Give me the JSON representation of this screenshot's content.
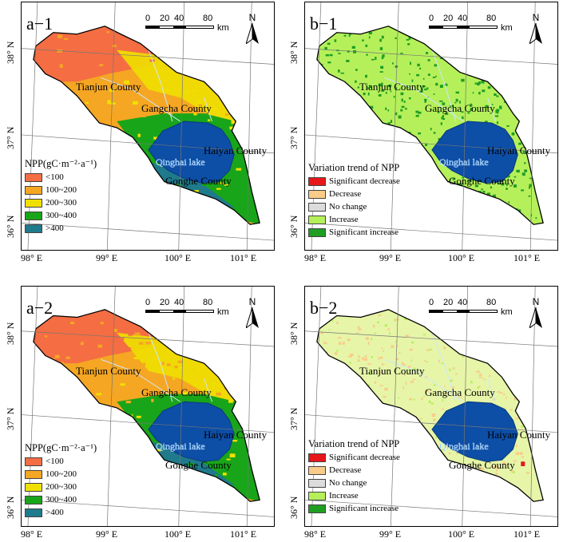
{
  "panels": [
    {
      "label": "a−1",
      "type": "npp",
      "legend_title": "NPP(gC·m⁻²·a⁻¹)",
      "legend": [
        {
          "label": "<100",
          "color": "#f46d43"
        },
        {
          "label": "100~200",
          "color": "#f5a623"
        },
        {
          "label": "200~300",
          "color": "#f0e000"
        },
        {
          "label": "300~400",
          "color": "#19a519"
        },
        {
          "label": ">400",
          "color": "#1f7a8c"
        }
      ]
    },
    {
      "label": "b−1",
      "type": "trend",
      "legend_title": "Variation trend of NPP",
      "legend": [
        {
          "label": "Significant decrease",
          "color": "#e8161b"
        },
        {
          "label": "Decrease",
          "color": "#f9cc8a"
        },
        {
          "label": "No change",
          "color": "#dcdcdc"
        },
        {
          "label": "Increase",
          "color": "#b5f05a"
        },
        {
          "label": "Significant increase",
          "color": "#1f9e22"
        }
      ]
    },
    {
      "label": "a−2",
      "type": "npp",
      "legend_title": "NPP(gC·m⁻²·a⁻¹)",
      "legend": [
        {
          "label": "<100",
          "color": "#f46d43"
        },
        {
          "label": "100~200",
          "color": "#f5a623"
        },
        {
          "label": "200~300",
          "color": "#f0e000"
        },
        {
          "label": "300~400",
          "color": "#19a519"
        },
        {
          "label": ">400",
          "color": "#1f7a8c"
        }
      ]
    },
    {
      "label": "b−2",
      "type": "trend",
      "legend_title": "Variation trend of NPP",
      "legend": [
        {
          "label": "Significant decrease",
          "color": "#e8161b"
        },
        {
          "label": "Decrease",
          "color": "#f9cc8a"
        },
        {
          "label": "No change",
          "color": "#dcdcdc"
        },
        {
          "label": "Increase",
          "color": "#b5f05a"
        },
        {
          "label": "Significant increase",
          "color": "#1f9e22"
        }
      ]
    }
  ],
  "place_names": {
    "tianjun": "Tianjun County",
    "gangcha": "Gangcha County",
    "haiyan": "Haiyan County",
    "gonghe": "Gonghe County",
    "lake": "Qinghai lake"
  },
  "longitude_ticks": [
    "98° E",
    "99° E",
    "100° E",
    "101° E"
  ],
  "latitude_ticks": [
    "36° N",
    "37° N",
    "38° N"
  ],
  "scale_bar": {
    "labels": [
      "0",
      "20",
      "40",
      "80"
    ],
    "unit": "km"
  },
  "north_label": "N",
  "colors": {
    "lake": "#0d4ea6",
    "lake_outline": "#0b3a7a",
    "outline": "#000000",
    "npp_1": {
      "north": "#f46d43",
      "mid": "#f5a623",
      "center": "#f0e000",
      "south": "#19a519",
      "deep": "#1f7a8c"
    },
    "npp_2": {
      "north": "#f46d43",
      "mid": "#f5a623",
      "center": "#f0e000",
      "south": "#19a519",
      "deep": "#1f7a8c"
    },
    "trend_1": {
      "base": "#b5f05a",
      "dots": "#1f9e22"
    },
    "trend_2": {
      "base": "#e6f5a8",
      "dots": "#f9cc8a"
    }
  }
}
